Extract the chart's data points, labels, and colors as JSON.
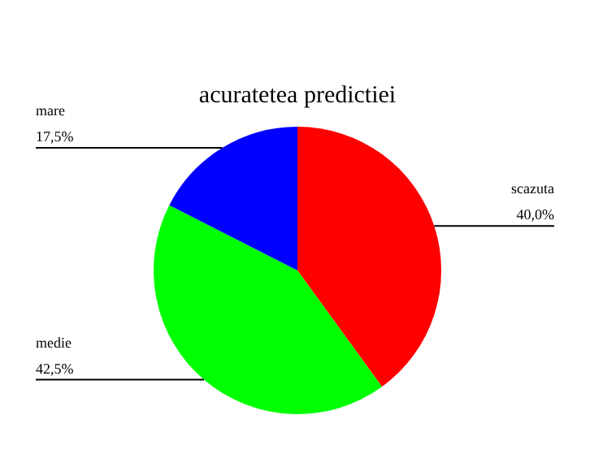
{
  "chart_data": {
    "type": "pie",
    "title": "acuratetea predictiei",
    "categories": [
      "scazuta",
      "medie",
      "mare"
    ],
    "values": [
      40,
      42.5,
      17.5
    ],
    "value_labels": [
      "40,0%",
      "42,5%",
      "17,5%"
    ],
    "colors": [
      "#ff0000",
      "#00ff00",
      "#0000ff"
    ],
    "legend": false
  }
}
